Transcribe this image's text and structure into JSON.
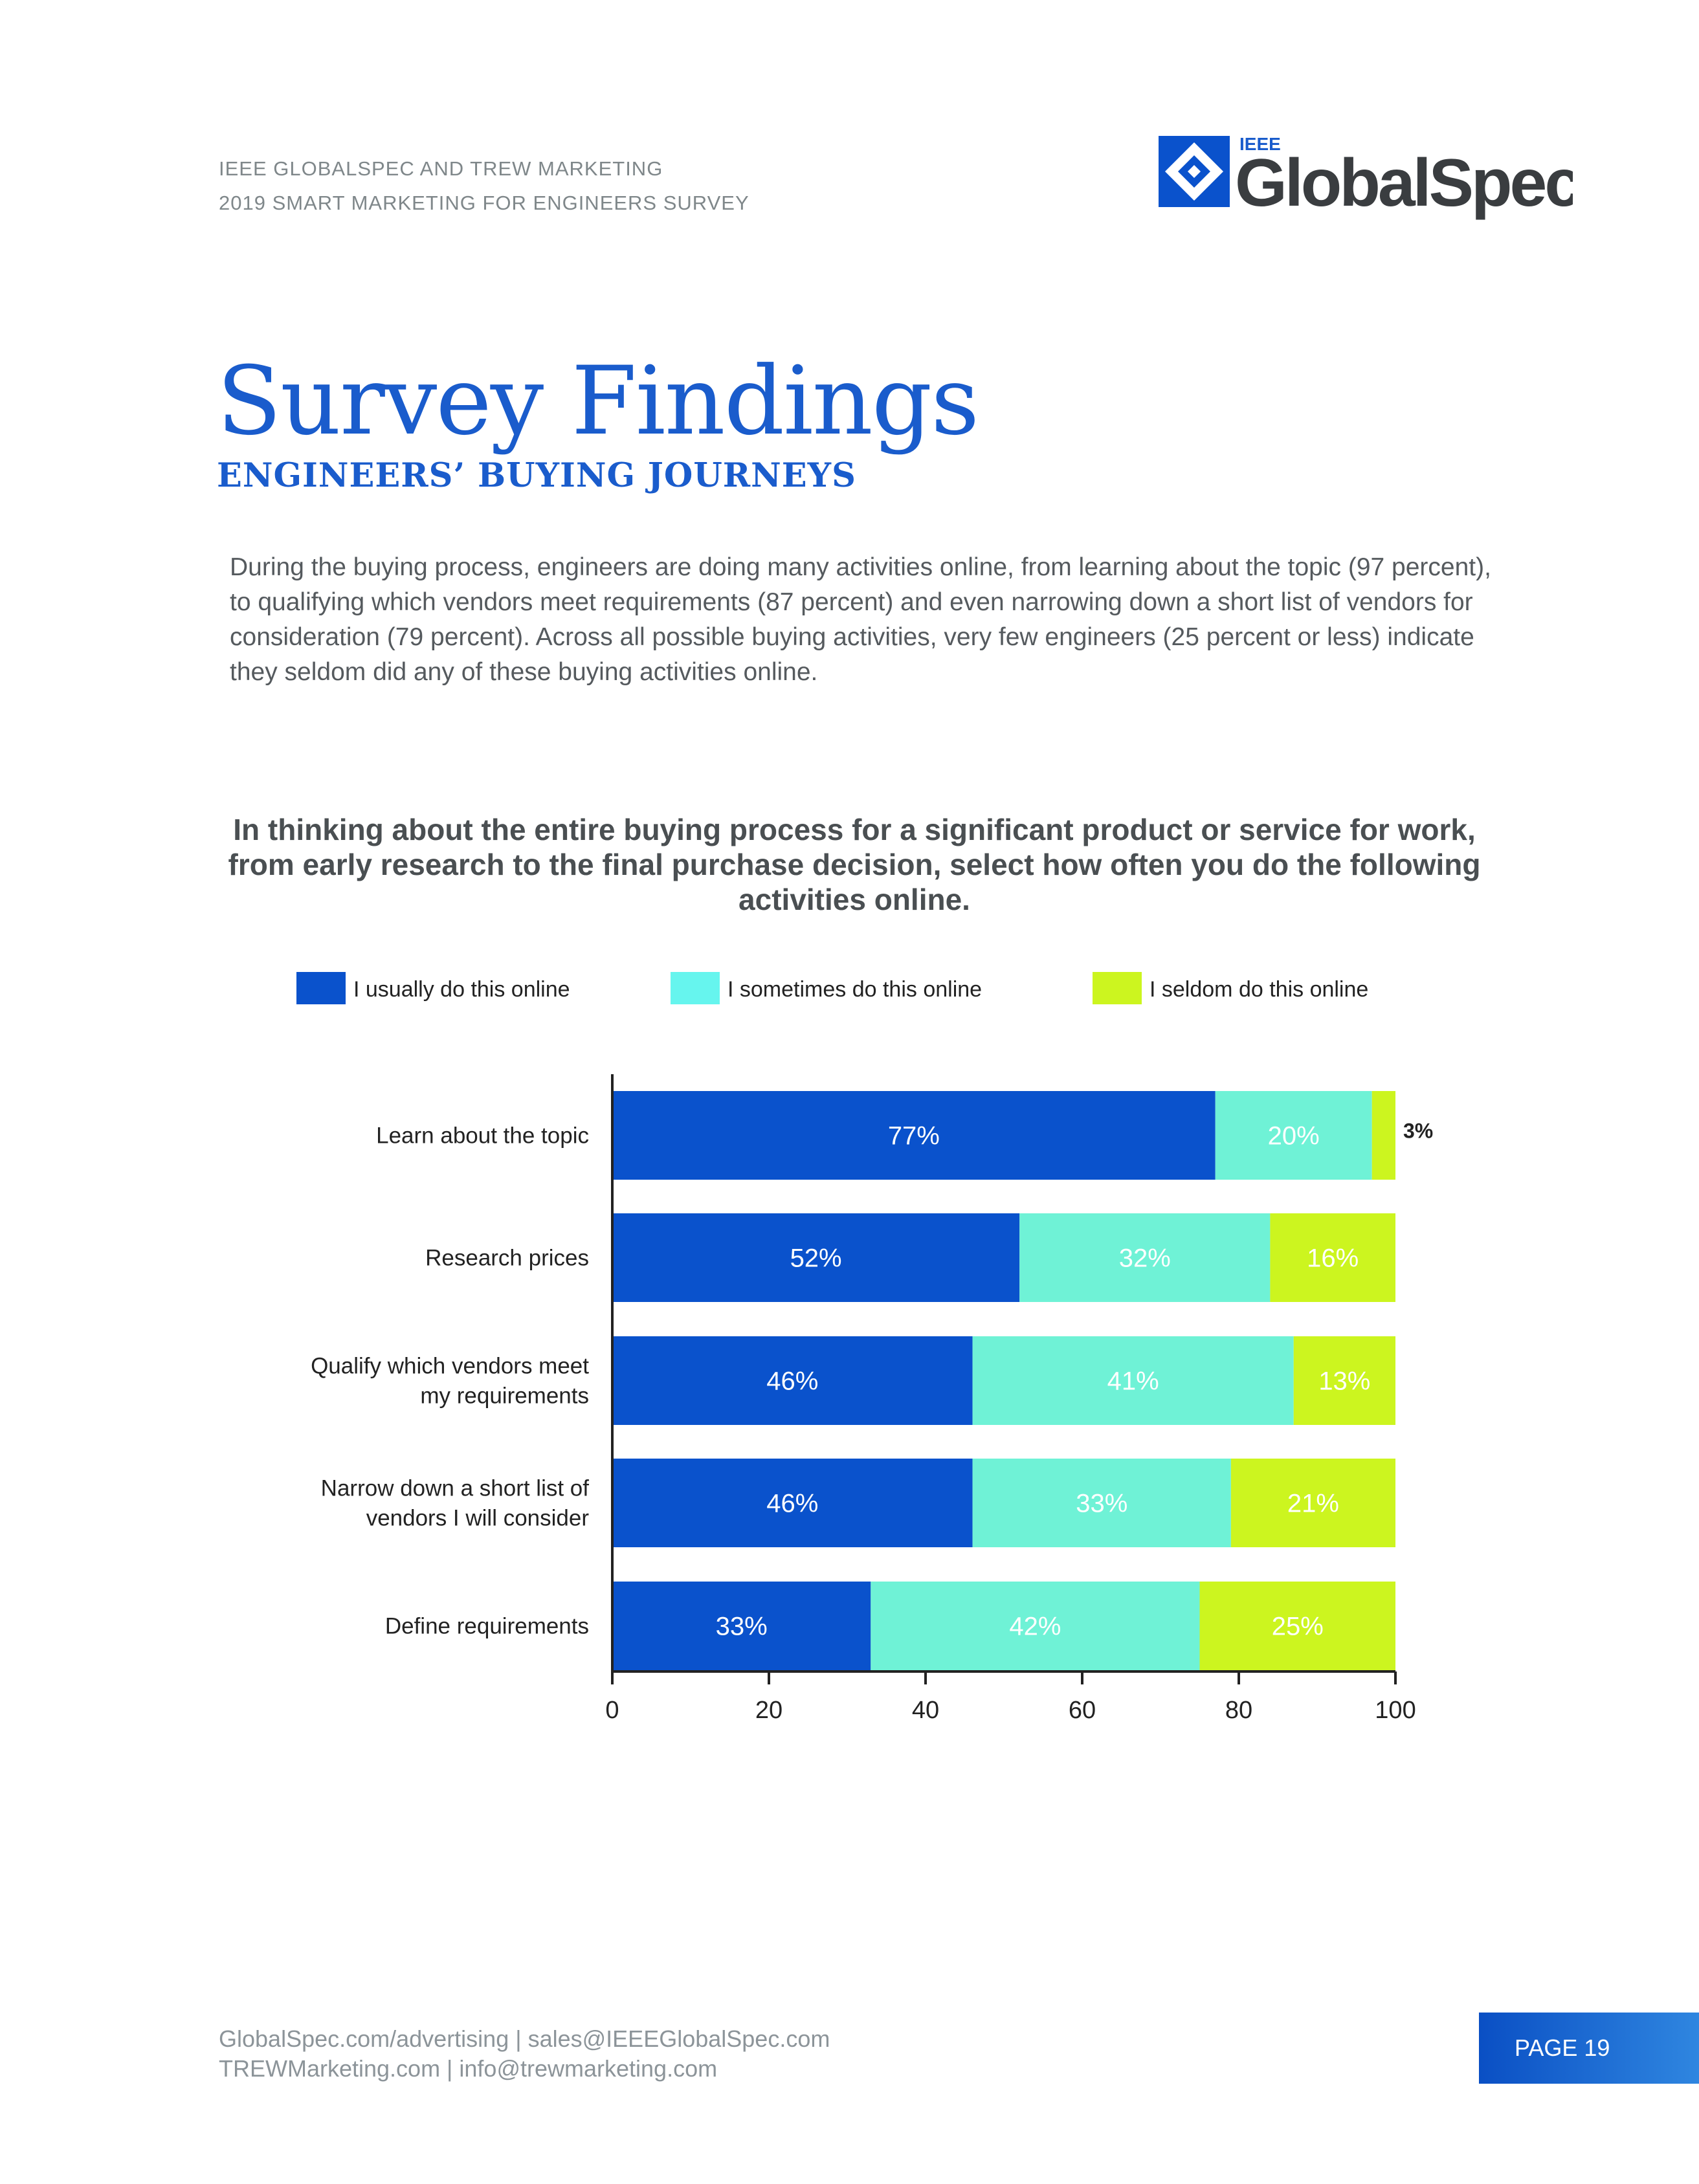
{
  "header": {
    "line1": "IEEE GLOBALSPEC AND TREW MARKETING",
    "line2": "2019 SMART MARKETING FOR ENGINEERS SURVEY"
  },
  "logo": {
    "superscript": "IEEE",
    "wordmark": "GlobalSpec"
  },
  "title": "Survey Findings",
  "subtitle": "ENGINEERS’ BUYING JOURNEYS",
  "intro": "During the buying process, engineers are doing many activities online, from learning about the topic (97 percent), to qualifying which vendors meet requirements (87 percent) and even narrowing down a short list of vendors for consideration (79 percent). Across all possible buying activities, very few engineers (25 percent or less) indicate they seldom did any of these buying activities online.",
  "question": "In thinking about the entire buying process for a significant product or service for work, from early research to the final purchase decision, select how often you do the following activities online.",
  "chart_data": {
    "type": "bar",
    "orientation": "horizontal",
    "stacked": true,
    "categories": [
      "Learn about the topic",
      "Research prices",
      "Qualify which vendors meet my requirements",
      "Narrow down a short list of vendors I will consider",
      "Define requirements"
    ],
    "category_lines": [
      [
        "Learn about the topic"
      ],
      [
        "Research prices"
      ],
      [
        "Qualify which vendors meet",
        "my requirements"
      ],
      [
        "Narrow down a short list of",
        "vendors I will consider"
      ],
      [
        "Define requirements"
      ]
    ],
    "series": [
      {
        "name": "I usually do this online",
        "color": "#0a52cc",
        "values": [
          77,
          52,
          46,
          46,
          33
        ],
        "labels": [
          "77%",
          "52%",
          "46%",
          "46%",
          "33%"
        ]
      },
      {
        "name": "I sometimes do this online",
        "color": "#6ff2d6",
        "values": [
          20,
          32,
          41,
          33,
          42
        ],
        "labels": [
          "20%",
          "32%",
          "41%",
          "33%",
          "42%"
        ]
      },
      {
        "name": "I seldom do this online",
        "color": "#ccf51f",
        "values": [
          3,
          16,
          13,
          21,
          25
        ],
        "labels": [
          "3%",
          "16%",
          "13%",
          "21%",
          "25%"
        ]
      }
    ],
    "legend_colors": [
      "#0a52cc",
      "#66f5ee",
      "#ccf51f"
    ],
    "xlim": [
      0,
      100
    ],
    "xticks": [
      0,
      20,
      40,
      60,
      80,
      100
    ],
    "xtick_labels": [
      "0",
      "20",
      "40",
      "60",
      "80",
      "100"
    ],
    "legend_position": "top"
  },
  "footer": {
    "line1": "GlobalSpec.com/advertising  |  sales@IEEEGlobalSpec.com",
    "line2": "TREWMarketing.com  |  info@trewmarketing.com",
    "page": "PAGE 19"
  }
}
